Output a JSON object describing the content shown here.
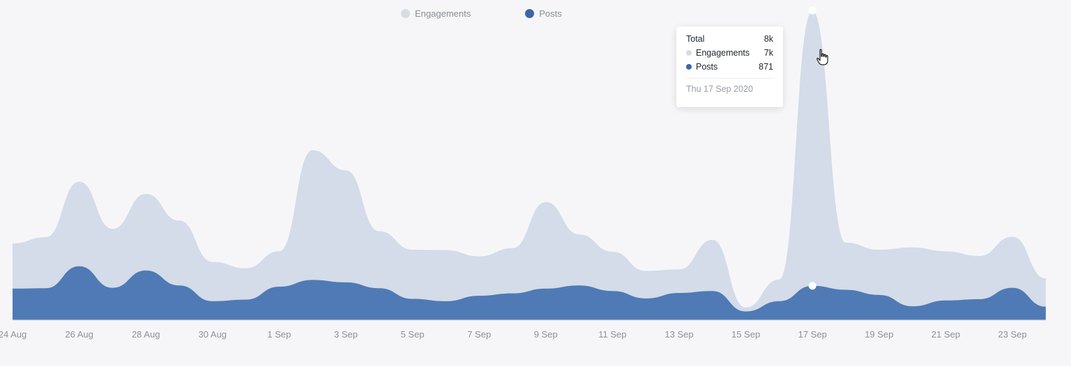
{
  "legend": {
    "engagements_label": "Engagements",
    "posts_label": "Posts"
  },
  "tooltip": {
    "total_label": "Total",
    "total_value": "8k",
    "engagements_label": "Engagements",
    "engagements_value": "7k",
    "posts_label": "Posts",
    "posts_value": "871",
    "date": "Thu 17 Sep 2020"
  },
  "colors": {
    "engagements": "#d3dce8",
    "posts": "#4f7ab5",
    "legend_engagements": "#d7dbe2",
    "legend_posts": "#3a66a8"
  },
  "chart_data": {
    "type": "area",
    "stacked": true,
    "x_tick_labels": [
      "24 Aug",
      "26 Aug",
      "28 Aug",
      "30 Aug",
      "1 Sep",
      "3 Sep",
      "5 Sep",
      "7 Sep",
      "9 Sep",
      "11 Sep",
      "13 Sep",
      "15 Sep",
      "17 Sep",
      "19 Sep",
      "21 Sep",
      "23 Sep"
    ],
    "x": [
      "24 Aug",
      "25 Aug",
      "26 Aug",
      "27 Aug",
      "28 Aug",
      "29 Aug",
      "30 Aug",
      "31 Aug",
      "1 Sep",
      "2 Sep",
      "3 Sep",
      "4 Sep",
      "5 Sep",
      "6 Sep",
      "7 Sep",
      "8 Sep",
      "9 Sep",
      "10 Sep",
      "11 Sep",
      "12 Sep",
      "13 Sep",
      "14 Sep",
      "15 Sep",
      "16 Sep",
      "17 Sep",
      "18 Sep",
      "19 Sep",
      "20 Sep",
      "21 Sep",
      "22 Sep",
      "23 Sep",
      "24 Sep"
    ],
    "series": [
      {
        "name": "Posts",
        "values": [
          800,
          810,
          1370,
          820,
          1260,
          880,
          480,
          520,
          850,
          1020,
          960,
          810,
          540,
          480,
          620,
          680,
          800,
          880,
          740,
          550,
          690,
          740,
          220,
          480,
          871,
          770,
          640,
          350,
          500,
          530,
          820,
          340
        ]
      },
      {
        "name": "Engagements",
        "values": [
          1150,
          1300,
          2150,
          1500,
          1950,
          1650,
          1000,
          800,
          900,
          3300,
          2850,
          1450,
          1250,
          1300,
          1000,
          1150,
          2200,
          1300,
          1000,
          700,
          600,
          1300,
          100,
          550,
          7000,
          1200,
          1150,
          1500,
          1250,
          1100,
          1300,
          720
        ]
      }
    ],
    "tooltip_index": 24
  }
}
